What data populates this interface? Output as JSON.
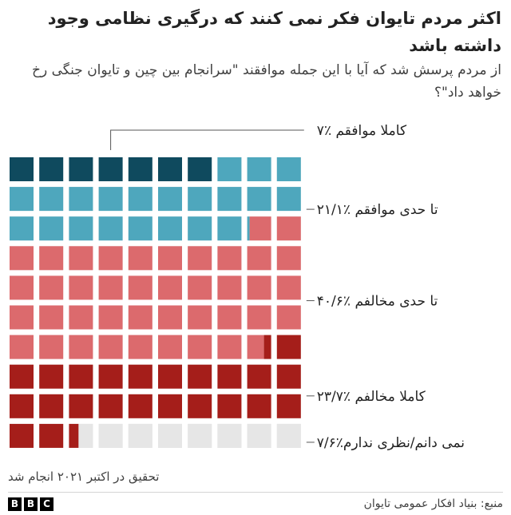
{
  "title": "اکثر مردم تایوان فکر نمی کنند که درگیری نظامی وجود داشته باشد",
  "subtitle": "از مردم پرسش شد که آیا با این جمله موافقند \"سرانجام بین چین و تایوان جنگی رخ خواهد داد\"؟",
  "note": "تحقیق در اکتبر ۲۰۲۱ انجام شد",
  "source": "منبع: بنیاد افکار عمومی تایوان",
  "brand": {
    "letters": [
      "B",
      "B",
      "C"
    ]
  },
  "colors": {
    "background": "#ffffff",
    "empty": "#e6e6e6",
    "leader": "#555555"
  },
  "chart_data": {
    "type": "waffle",
    "grid": {
      "rows": 10,
      "cols": 10,
      "total": 100
    },
    "categories": [
      {
        "label": "کاملا موافقم ٪۷",
        "value": 7,
        "color": "#0f4a5e"
      },
      {
        "label": "تا حدی موافقم ٪۲۱/۱",
        "value": 21.1,
        "color": "#4ea7bd"
      },
      {
        "label": "تا حدی مخالفم ٪۴۰/۶",
        "value": 40.6,
        "color": "#dc6a6d"
      },
      {
        "label": "کاملا مخالفم ٪۲۳/۷",
        "value": 23.7,
        "color": "#a51e1a"
      },
      {
        "label": "نمی دانم/نظری ندارم٪۷/۶",
        "value": 7.6,
        "color": "#e6e6e6"
      }
    ]
  }
}
